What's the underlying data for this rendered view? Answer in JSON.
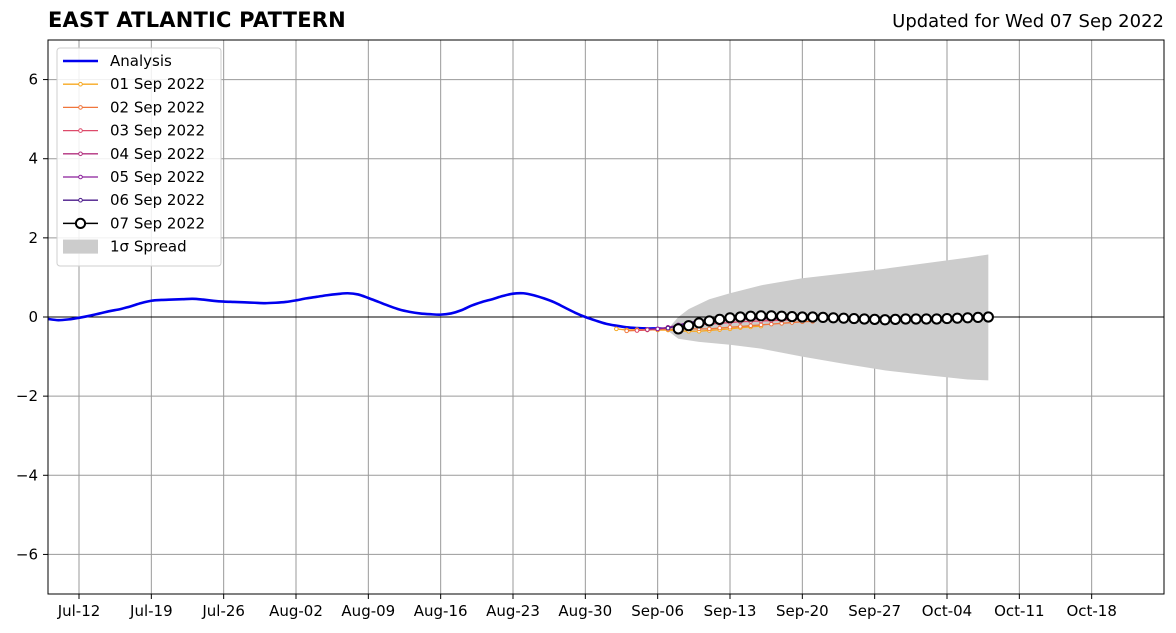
{
  "chart_data": {
    "type": "line",
    "title": "EAST ATLANTIC PATTERN",
    "subtitle": "Updated for Wed 07 Sep 2022",
    "xlabel": "",
    "ylabel": "",
    "x_axis": {
      "type": "date",
      "range": [
        "2022-07-09",
        "2022-10-25"
      ],
      "ticks": [
        "2022-07-12",
        "2022-07-19",
        "2022-07-26",
        "2022-08-02",
        "2022-08-09",
        "2022-08-16",
        "2022-08-23",
        "2022-08-30",
        "2022-09-06",
        "2022-09-13",
        "2022-09-20",
        "2022-09-27",
        "2022-10-04",
        "2022-10-11",
        "2022-10-18"
      ],
      "tick_labels": [
        "Jul-12",
        "Jul-19",
        "Jul-26",
        "Aug-02",
        "Aug-09",
        "Aug-16",
        "Aug-23",
        "Aug-30",
        "Sep-06",
        "Sep-13",
        "Sep-20",
        "Sep-27",
        "Oct-04",
        "Oct-11",
        "Oct-18"
      ]
    },
    "ylim": [
      -7,
      7
    ],
    "yticks": [
      -6,
      -4,
      -2,
      0,
      2,
      4,
      6
    ],
    "ytick_labels": [
      "−6",
      "−4",
      "−2",
      "0",
      "2",
      "4",
      "6"
    ],
    "grid": true,
    "zero_line": true,
    "legend": {
      "position": "top-left",
      "entries": [
        "Analysis",
        "01 Sep 2022",
        "02 Sep 2022",
        "03 Sep 2022",
        "04 Sep 2022",
        "05 Sep 2022",
        "06 Sep 2022",
        "07 Sep 2022",
        "1σ Spread"
      ]
    },
    "analysis": {
      "name": "Analysis",
      "color": "#0000ee",
      "points": [
        [
          "2022-07-09",
          -0.05
        ],
        [
          "2022-07-10",
          -0.08
        ],
        [
          "2022-07-11",
          -0.06
        ],
        [
          "2022-07-12",
          -0.02
        ],
        [
          "2022-07-13",
          0.03
        ],
        [
          "2022-07-14",
          0.09
        ],
        [
          "2022-07-15",
          0.15
        ],
        [
          "2022-07-16",
          0.2
        ],
        [
          "2022-07-17",
          0.27
        ],
        [
          "2022-07-18",
          0.35
        ],
        [
          "2022-07-19",
          0.41
        ],
        [
          "2022-07-20",
          0.43
        ],
        [
          "2022-07-21",
          0.44
        ],
        [
          "2022-07-22",
          0.45
        ],
        [
          "2022-07-23",
          0.46
        ],
        [
          "2022-07-24",
          0.44
        ],
        [
          "2022-07-25",
          0.41
        ],
        [
          "2022-07-26",
          0.39
        ],
        [
          "2022-07-27",
          0.38
        ],
        [
          "2022-07-28",
          0.37
        ],
        [
          "2022-07-29",
          0.36
        ],
        [
          "2022-07-30",
          0.35
        ],
        [
          "2022-07-31",
          0.36
        ],
        [
          "2022-08-01",
          0.38
        ],
        [
          "2022-08-02",
          0.42
        ],
        [
          "2022-08-03",
          0.47
        ],
        [
          "2022-08-04",
          0.51
        ],
        [
          "2022-08-05",
          0.55
        ],
        [
          "2022-08-06",
          0.58
        ],
        [
          "2022-08-07",
          0.6
        ],
        [
          "2022-08-08",
          0.57
        ],
        [
          "2022-08-09",
          0.48
        ],
        [
          "2022-08-10",
          0.38
        ],
        [
          "2022-08-11",
          0.28
        ],
        [
          "2022-08-12",
          0.19
        ],
        [
          "2022-08-13",
          0.13
        ],
        [
          "2022-08-14",
          0.09
        ],
        [
          "2022-08-15",
          0.07
        ],
        [
          "2022-08-16",
          0.06
        ],
        [
          "2022-08-17",
          0.09
        ],
        [
          "2022-08-18",
          0.17
        ],
        [
          "2022-08-19",
          0.29
        ],
        [
          "2022-08-20",
          0.38
        ],
        [
          "2022-08-21",
          0.45
        ],
        [
          "2022-08-22",
          0.53
        ],
        [
          "2022-08-23",
          0.59
        ],
        [
          "2022-08-24",
          0.6
        ],
        [
          "2022-08-25",
          0.55
        ],
        [
          "2022-08-26",
          0.47
        ],
        [
          "2022-08-27",
          0.37
        ],
        [
          "2022-08-28",
          0.24
        ],
        [
          "2022-08-29",
          0.11
        ],
        [
          "2022-08-30",
          0.0
        ],
        [
          "2022-08-31",
          -0.09
        ],
        [
          "2022-09-01",
          -0.17
        ],
        [
          "2022-09-02",
          -0.22
        ],
        [
          "2022-09-03",
          -0.26
        ],
        [
          "2022-09-04",
          -0.28
        ],
        [
          "2022-09-05",
          -0.29
        ],
        [
          "2022-09-06",
          -0.29
        ],
        [
          "2022-09-07",
          -0.3
        ]
      ]
    },
    "spread": {
      "name": "1σ Spread",
      "color": "#cccccc",
      "upper": [
        [
          "2022-09-07",
          -0.3
        ],
        [
          "2022-09-08",
          0.0
        ],
        [
          "2022-09-09",
          0.2
        ],
        [
          "2022-09-11",
          0.45
        ],
        [
          "2022-09-13",
          0.6
        ],
        [
          "2022-09-16",
          0.8
        ],
        [
          "2022-09-20",
          0.98
        ],
        [
          "2022-09-24",
          1.1
        ],
        [
          "2022-09-28",
          1.22
        ],
        [
          "2022-10-02",
          1.36
        ],
        [
          "2022-10-06",
          1.5
        ],
        [
          "2022-10-08",
          1.58
        ]
      ],
      "lower": [
        [
          "2022-09-07",
          -0.35
        ],
        [
          "2022-09-08",
          -0.55
        ],
        [
          "2022-09-10",
          -0.63
        ],
        [
          "2022-09-13",
          -0.7
        ],
        [
          "2022-09-16",
          -0.8
        ],
        [
          "2022-09-20",
          -1.0
        ],
        [
          "2022-09-24",
          -1.18
        ],
        [
          "2022-09-28",
          -1.35
        ],
        [
          "2022-10-02",
          -1.47
        ],
        [
          "2022-10-06",
          -1.58
        ],
        [
          "2022-10-08",
          -1.6
        ]
      ]
    },
    "forecasts": [
      {
        "name": "01 Sep 2022",
        "color": "#f7a820",
        "marker": "small",
        "points": [
          [
            "2022-09-02",
            -0.3
          ],
          [
            "2022-09-03",
            -0.33
          ],
          [
            "2022-09-04",
            -0.32
          ],
          [
            "2022-09-05",
            -0.32
          ],
          [
            "2022-09-06",
            -0.33
          ],
          [
            "2022-09-07",
            -0.33
          ],
          [
            "2022-09-08",
            -0.35
          ],
          [
            "2022-09-09",
            -0.36
          ],
          [
            "2022-09-10",
            -0.36
          ],
          [
            "2022-09-11",
            -0.34
          ],
          [
            "2022-09-12",
            -0.32
          ],
          [
            "2022-09-13",
            -0.3
          ],
          [
            "2022-09-14",
            -0.27
          ],
          [
            "2022-09-15",
            -0.25
          ],
          [
            "2022-09-16",
            -0.23
          ]
        ]
      },
      {
        "name": "02 Sep 2022",
        "color": "#f0763c",
        "marker": "small",
        "points": [
          [
            "2022-09-03",
            -0.35
          ],
          [
            "2022-09-04",
            -0.34
          ],
          [
            "2022-09-05",
            -0.33
          ],
          [
            "2022-09-06",
            -0.32
          ],
          [
            "2022-09-07",
            -0.31
          ],
          [
            "2022-09-08",
            -0.31
          ],
          [
            "2022-09-09",
            -0.3
          ],
          [
            "2022-09-10",
            -0.3
          ],
          [
            "2022-09-11",
            -0.3
          ],
          [
            "2022-09-12",
            -0.28
          ],
          [
            "2022-09-13",
            -0.26
          ],
          [
            "2022-09-14",
            -0.24
          ],
          [
            "2022-09-15",
            -0.22
          ],
          [
            "2022-09-16",
            -0.2
          ],
          [
            "2022-09-17",
            -0.18
          ],
          [
            "2022-09-18",
            -0.16
          ],
          [
            "2022-09-19",
            -0.14
          ],
          [
            "2022-09-20",
            -0.12
          ],
          [
            "2022-09-21",
            -0.11
          ]
        ]
      },
      {
        "name": "03 Sep 2022",
        "color": "#dd4a6a",
        "marker": "small",
        "points": [
          [
            "2022-09-04",
            -0.34
          ],
          [
            "2022-09-05",
            -0.32
          ],
          [
            "2022-09-06",
            -0.3
          ],
          [
            "2022-09-07",
            -0.27
          ],
          [
            "2022-09-08",
            -0.24
          ],
          [
            "2022-09-09",
            -0.22
          ],
          [
            "2022-09-10",
            -0.2
          ],
          [
            "2022-09-11",
            -0.18
          ],
          [
            "2022-09-12",
            -0.16
          ],
          [
            "2022-09-13",
            -0.14
          ],
          [
            "2022-09-14",
            -0.12
          ],
          [
            "2022-09-15",
            -0.11
          ],
          [
            "2022-09-16",
            -0.1
          ],
          [
            "2022-09-17",
            -0.09
          ],
          [
            "2022-09-18",
            -0.08
          ],
          [
            "2022-09-19",
            -0.07
          ]
        ]
      },
      {
        "name": "04 Sep 2022",
        "color": "#b2307e",
        "marker": "small",
        "points": [
          [
            "2022-09-05",
            -0.32
          ],
          [
            "2022-09-06",
            -0.3
          ],
          [
            "2022-09-07",
            -0.26
          ],
          [
            "2022-09-08",
            -0.21
          ],
          [
            "2022-09-09",
            -0.17
          ],
          [
            "2022-09-10",
            -0.13
          ],
          [
            "2022-09-11",
            -0.1
          ],
          [
            "2022-09-12",
            -0.08
          ],
          [
            "2022-09-13",
            -0.07
          ],
          [
            "2022-09-14",
            -0.06
          ],
          [
            "2022-09-15",
            -0.05
          ],
          [
            "2022-09-16",
            -0.05
          ],
          [
            "2022-09-17",
            -0.05
          ],
          [
            "2022-09-18",
            -0.05
          ],
          [
            "2022-09-19",
            -0.05
          ],
          [
            "2022-09-20",
            -0.05
          ]
        ]
      },
      {
        "name": "05 Sep 2022",
        "color": "#8a1f9a",
        "marker": "small",
        "points": [
          [
            "2022-09-06",
            -0.3
          ],
          [
            "2022-09-07",
            -0.27
          ],
          [
            "2022-09-08",
            -0.2
          ],
          [
            "2022-09-09",
            -0.14
          ],
          [
            "2022-09-10",
            -0.1
          ],
          [
            "2022-09-11",
            -0.07
          ],
          [
            "2022-09-12",
            -0.05
          ],
          [
            "2022-09-13",
            -0.04
          ],
          [
            "2022-09-14",
            -0.03
          ],
          [
            "2022-09-15",
            -0.03
          ],
          [
            "2022-09-16",
            -0.02
          ]
        ]
      },
      {
        "name": "06 Sep 2022",
        "color": "#4a1a8a",
        "marker": "small",
        "points": [
          [
            "2022-09-07",
            -0.28
          ],
          [
            "2022-09-08",
            -0.22
          ],
          [
            "2022-09-09",
            -0.15
          ],
          [
            "2022-09-10",
            -0.1
          ],
          [
            "2022-09-11",
            -0.07
          ],
          [
            "2022-09-12",
            -0.05
          ],
          [
            "2022-09-13",
            -0.04
          ],
          [
            "2022-09-14",
            -0.03
          ]
        ]
      },
      {
        "name": "07 Sep 2022",
        "color": "#000000",
        "marker": "large",
        "points": [
          [
            "2022-09-08",
            -0.3
          ],
          [
            "2022-09-09",
            -0.22
          ],
          [
            "2022-09-10",
            -0.15
          ],
          [
            "2022-09-11",
            -0.1
          ],
          [
            "2022-09-12",
            -0.06
          ],
          [
            "2022-09-13",
            -0.02
          ],
          [
            "2022-09-14",
            0.0
          ],
          [
            "2022-09-15",
            0.02
          ],
          [
            "2022-09-16",
            0.03
          ],
          [
            "2022-09-17",
            0.03
          ],
          [
            "2022-09-18",
            0.02
          ],
          [
            "2022-09-19",
            0.01
          ],
          [
            "2022-09-20",
            0.0
          ],
          [
            "2022-09-21",
            0.0
          ],
          [
            "2022-09-22",
            -0.01
          ],
          [
            "2022-09-23",
            -0.02
          ],
          [
            "2022-09-24",
            -0.03
          ],
          [
            "2022-09-25",
            -0.04
          ],
          [
            "2022-09-26",
            -0.05
          ],
          [
            "2022-09-27",
            -0.06
          ],
          [
            "2022-09-28",
            -0.07
          ],
          [
            "2022-09-29",
            -0.06
          ],
          [
            "2022-09-30",
            -0.05
          ],
          [
            "2022-10-01",
            -0.05
          ],
          [
            "2022-10-02",
            -0.05
          ],
          [
            "2022-10-03",
            -0.05
          ],
          [
            "2022-10-04",
            -0.04
          ],
          [
            "2022-10-05",
            -0.03
          ],
          [
            "2022-10-06",
            -0.02
          ],
          [
            "2022-10-07",
            -0.01
          ],
          [
            "2022-10-08",
            0.0
          ]
        ]
      }
    ]
  }
}
